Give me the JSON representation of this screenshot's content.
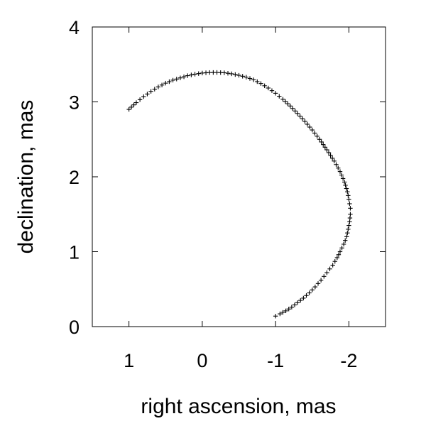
{
  "chart_data": {
    "type": "scatter",
    "title": "",
    "xlabel": "right ascension, mas",
    "ylabel": "declination, mas",
    "xlim": [
      1.5,
      -2.5
    ],
    "ylim": [
      0,
      4
    ],
    "x_reversed": true,
    "grid": false,
    "legend": "none",
    "marker": "plus",
    "color": "#000000",
    "x_ticks": [
      1,
      0,
      -1,
      -2
    ],
    "x_tick_labels": [
      "1",
      "0",
      "-1",
      "-2"
    ],
    "y_ticks": [
      0,
      1,
      2,
      3,
      4
    ],
    "y_tick_labels": [
      "0",
      "1",
      "2",
      "3",
      "4"
    ],
    "series": [
      {
        "points": [
          [
            1.0,
            2.9
          ],
          [
            0.9,
            2.99
          ],
          [
            0.8,
            3.07
          ],
          [
            0.7,
            3.14
          ],
          [
            0.6,
            3.2
          ],
          [
            0.5,
            3.25
          ],
          [
            0.4,
            3.29
          ],
          [
            0.3,
            3.32
          ],
          [
            0.2,
            3.35
          ],
          [
            0.1,
            3.37
          ],
          [
            0.0,
            3.385
          ],
          [
            -0.1,
            3.392
          ],
          [
            -0.2,
            3.393
          ],
          [
            -0.3,
            3.389
          ],
          [
            -0.4,
            3.375
          ],
          [
            -0.5,
            3.355
          ],
          [
            -0.6,
            3.33
          ],
          [
            -0.7,
            3.295
          ],
          [
            -0.8,
            3.245
          ],
          [
            -0.9,
            3.185
          ],
          [
            -1.0,
            3.115
          ],
          [
            -1.1,
            3.035
          ],
          [
            -1.2,
            2.945
          ],
          [
            -1.3,
            2.845
          ],
          [
            -1.4,
            2.74
          ],
          [
            -1.5,
            2.625
          ],
          [
            -1.6,
            2.5
          ],
          [
            -1.7,
            2.36
          ],
          [
            -1.8,
            2.21
          ],
          [
            -1.88,
            2.07
          ],
          [
            -1.94,
            1.93
          ],
          [
            -1.98,
            1.8
          ],
          [
            -2.0,
            1.7
          ],
          [
            -2.02,
            1.58
          ],
          [
            -2.02,
            1.5
          ],
          [
            -2.01,
            1.4
          ],
          [
            -1.99,
            1.3
          ],
          [
            -1.97,
            1.2
          ],
          [
            -1.93,
            1.1
          ],
          [
            -1.88,
            1.0
          ],
          [
            -1.84,
            0.92
          ],
          [
            -1.78,
            0.82
          ],
          [
            -1.7,
            0.72
          ],
          [
            -1.62,
            0.62
          ],
          [
            -1.54,
            0.53
          ],
          [
            -1.46,
            0.45
          ],
          [
            -1.38,
            0.38
          ],
          [
            -1.3,
            0.32
          ],
          [
            -1.22,
            0.26
          ],
          [
            -1.14,
            0.21
          ],
          [
            -1.06,
            0.17
          ],
          [
            -1.0,
            0.14
          ]
        ]
      }
    ]
  }
}
